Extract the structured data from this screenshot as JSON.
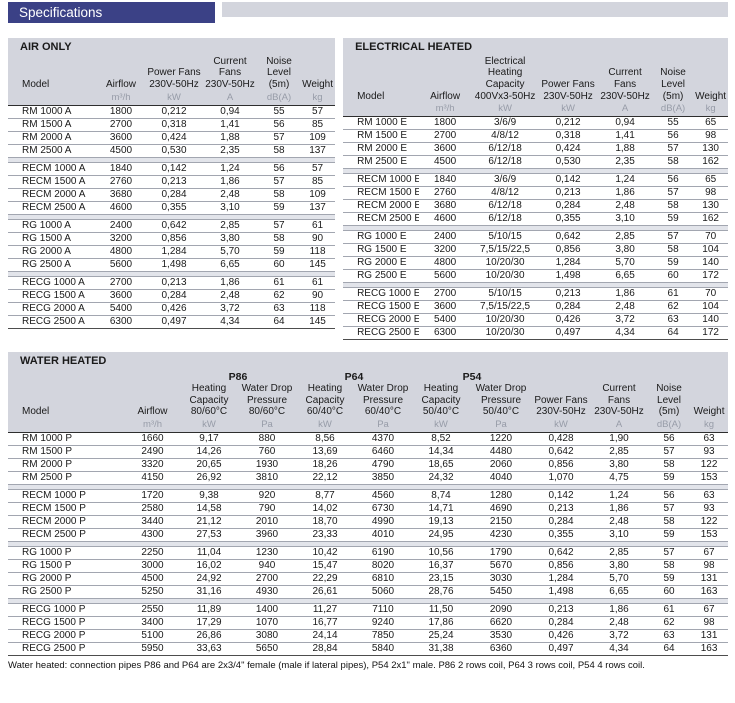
{
  "banner": {
    "title": "Specifications"
  },
  "colors": {
    "banner_bg": "#3b4186",
    "table_header_bg": "#d3d5dd",
    "group_band_bg": "#e2e4ea",
    "row_line": "#a2a6b0",
    "unit_text": "#979ca8"
  },
  "footnote": "Water heated: connection pipes P86 and P64 are 2x3/4\" female (male if lateral pipes), P54 2x1\" male. P86 2 rows coil, P64 3 rows coil, P54 4 rows coil.",
  "tables": {
    "air_only": {
      "title": "AIR ONLY",
      "columns": [
        {
          "label": "Model",
          "unit": ""
        },
        {
          "label": "Airflow",
          "unit": "m³/h"
        },
        {
          "label": "Power Fans\n230V-50Hz",
          "unit": "kW"
        },
        {
          "label": "Current\nFans\n230V-50Hz",
          "unit": "A"
        },
        {
          "label": "Noise\nLevel\n(5m)",
          "unit": "dB(A)"
        },
        {
          "label": "Weight",
          "unit": "kg"
        }
      ],
      "groups": [
        [
          [
            "RM 1000 A",
            "1800",
            "0,212",
            "0,94",
            "55",
            "57"
          ],
          [
            "RM 1500 A",
            "2700",
            "0,318",
            "1,41",
            "56",
            "85"
          ],
          [
            "RM 2000 A",
            "3600",
            "0,424",
            "1,88",
            "57",
            "109"
          ],
          [
            "RM 2500 A",
            "4500",
            "0,530",
            "2,35",
            "58",
            "137"
          ]
        ],
        [
          [
            "RECM 1000 A",
            "1840",
            "0,142",
            "1,24",
            "56",
            "57"
          ],
          [
            "RECM 1500 A",
            "2760",
            "0,213",
            "1,86",
            "57",
            "85"
          ],
          [
            "RECM 2000 A",
            "3680",
            "0,284",
            "2,48",
            "58",
            "109"
          ],
          [
            "RECM 2500 A",
            "4600",
            "0,355",
            "3,10",
            "59",
            "137"
          ]
        ],
        [
          [
            "RG 1000 A",
            "2400",
            "0,642",
            "2,85",
            "57",
            "61"
          ],
          [
            "RG 1500 A",
            "3200",
            "0,856",
            "3,80",
            "58",
            "90"
          ],
          [
            "RG 2000 A",
            "4800",
            "1,284",
            "5,70",
            "59",
            "118"
          ],
          [
            "RG 2500 A",
            "5600",
            "1,498",
            "6,65",
            "60",
            "145"
          ]
        ],
        [
          [
            "RECG 1000 A",
            "2700",
            "0,213",
            "1,86",
            "61",
            "61"
          ],
          [
            "RECG 1500 A",
            "3600",
            "0,284",
            "2,48",
            "62",
            "90"
          ],
          [
            "RECG 2000 A",
            "5400",
            "0,426",
            "3,72",
            "63",
            "118"
          ],
          [
            "RECG 2500 A",
            "6300",
            "0,497",
            "4,34",
            "64",
            "145"
          ]
        ]
      ]
    },
    "electrical_heated": {
      "title": "ELECTRICAL HEATED",
      "columns": [
        {
          "label": "Model",
          "unit": ""
        },
        {
          "label": "Airflow",
          "unit": "m³/h"
        },
        {
          "label": "Electrical Heating\nCapacity\n400Vx3-50Hz",
          "unit": "kW"
        },
        {
          "label": "Power Fans\n230V-50Hz",
          "unit": "kW"
        },
        {
          "label": "Current\nFans\n230V-50Hz",
          "unit": "A"
        },
        {
          "label": "Noise\nLevel\n(5m)",
          "unit": "dB(A)"
        },
        {
          "label": "Weight",
          "unit": "kg"
        }
      ],
      "groups": [
        [
          [
            "RM 1000 E",
            "1800",
            "3/6/9",
            "0,212",
            "0,94",
            "55",
            "65"
          ],
          [
            "RM 1500 E",
            "2700",
            "4/8/12",
            "0,318",
            "1,41",
            "56",
            "98"
          ],
          [
            "RM 2000 E",
            "3600",
            "6/12/18",
            "0,424",
            "1,88",
            "57",
            "130"
          ],
          [
            "RM 2500 E",
            "4500",
            "6/12/18",
            "0,530",
            "2,35",
            "58",
            "162"
          ]
        ],
        [
          [
            "RECM 1000 E",
            "1840",
            "3/6/9",
            "0,142",
            "1,24",
            "56",
            "65"
          ],
          [
            "RECM 1500 E",
            "2760",
            "4/8/12",
            "0,213",
            "1,86",
            "57",
            "98"
          ],
          [
            "RECM 2000 E",
            "3680",
            "6/12/18",
            "0,284",
            "2,48",
            "58",
            "130"
          ],
          [
            "RECM 2500 E",
            "4600",
            "6/12/18",
            "0,355",
            "3,10",
            "59",
            "162"
          ]
        ],
        [
          [
            "RG 1000 E",
            "2400",
            "5/10/15",
            "0,642",
            "2,85",
            "57",
            "70"
          ],
          [
            "RG 1500 E",
            "3200",
            "7,5/15/22,5",
            "0,856",
            "3,80",
            "58",
            "104"
          ],
          [
            "RG 2000 E",
            "4800",
            "10/20/30",
            "1,284",
            "5,70",
            "59",
            "140"
          ],
          [
            "RG 2500 E",
            "5600",
            "10/20/30",
            "1,498",
            "6,65",
            "60",
            "172"
          ]
        ],
        [
          [
            "RECG 1000 E",
            "2700",
            "5/10/15",
            "0,213",
            "1,86",
            "61",
            "70"
          ],
          [
            "RECG 1500 E",
            "3600",
            "7,5/15/22,5",
            "0,284",
            "2,48",
            "62",
            "104"
          ],
          [
            "RECG 2000 E",
            "5400",
            "10/20/30",
            "0,426",
            "3,72",
            "63",
            "140"
          ],
          [
            "RECG 2500 E",
            "6300",
            "10/20/30",
            "0,497",
            "4,34",
            "64",
            "172"
          ]
        ]
      ]
    },
    "water_heated": {
      "title": "WATER HEATED",
      "columns": [
        {
          "label": "Model",
          "unit": ""
        },
        {
          "label": "Airflow",
          "unit": "m³/h"
        },
        {
          "group": "P86",
          "label": "Heating\nCapacity\n80/60°C",
          "unit": "kW"
        },
        {
          "group": "P86",
          "label": "Water Drop\nPressure\n80/60°C",
          "unit": "Pa"
        },
        {
          "group": "P64",
          "label": "Heating\nCapacity\n60/40°C",
          "unit": "kW"
        },
        {
          "group": "P64",
          "label": "Water Drop\nPressure\n60/40°C",
          "unit": "Pa"
        },
        {
          "group": "P54",
          "label": "Heating\nCapacity\n50/40°C",
          "unit": "kW"
        },
        {
          "group": "P54",
          "label": "Water Drop\nPressure\n50/40°C",
          "unit": "Pa"
        },
        {
          "label": "Power Fans\n230V-50Hz",
          "unit": "kW"
        },
        {
          "label": "Current\nFans\n230V-50Hz",
          "unit": "A"
        },
        {
          "label": "Noise\nLevel\n(5m)",
          "unit": "dB(A)"
        },
        {
          "label": "Weight",
          "unit": "kg"
        }
      ],
      "groups": [
        [
          [
            "RM 1000 P",
            "1660",
            "9,17",
            "880",
            "8,56",
            "4370",
            "8,52",
            "1220",
            "0,428",
            "1,90",
            "56",
            "63"
          ],
          [
            "RM 1500 P",
            "2490",
            "14,26",
            "760",
            "13,69",
            "6460",
            "14,34",
            "4480",
            "0,642",
            "2,85",
            "57",
            "93"
          ],
          [
            "RM 2000 P",
            "3320",
            "20,65",
            "1930",
            "18,26",
            "4790",
            "18,65",
            "2060",
            "0,856",
            "3,80",
            "58",
            "122"
          ],
          [
            "RM 2500 P",
            "4150",
            "26,92",
            "3810",
            "22,12",
            "3850",
            "24,32",
            "4040",
            "1,070",
            "4,75",
            "59",
            "153"
          ]
        ],
        [
          [
            "RECM 1000 P",
            "1720",
            "9,38",
            "920",
            "8,77",
            "4560",
            "8,74",
            "1280",
            "0,142",
            "1,24",
            "56",
            "63"
          ],
          [
            "RECM 1500 P",
            "2580",
            "14,58",
            "790",
            "14,02",
            "6730",
            "14,71",
            "4690",
            "0,213",
            "1,86",
            "57",
            "93"
          ],
          [
            "RECM 2000 P",
            "3440",
            "21,12",
            "2010",
            "18,70",
            "4990",
            "19,13",
            "2150",
            "0,284",
            "2,48",
            "58",
            "122"
          ],
          [
            "RECM 2500 P",
            "4300",
            "27,53",
            "3960",
            "23,33",
            "4010",
            "24,95",
            "4230",
            "0,355",
            "3,10",
            "59",
            "153"
          ]
        ],
        [
          [
            "RG 1000 P",
            "2250",
            "11,04",
            "1230",
            "10,42",
            "6190",
            "10,56",
            "1790",
            "0,642",
            "2,85",
            "57",
            "67"
          ],
          [
            "RG 1500 P",
            "3000",
            "16,02",
            "940",
            "15,47",
            "8020",
            "16,37",
            "5670",
            "0,856",
            "3,80",
            "58",
            "98"
          ],
          [
            "RG 2000 P",
            "4500",
            "24,92",
            "2700",
            "22,29",
            "6810",
            "23,15",
            "3030",
            "1,284",
            "5,70",
            "59",
            "131"
          ],
          [
            "RG 2500 P",
            "5250",
            "31,16",
            "4930",
            "26,61",
            "5060",
            "28,76",
            "5450",
            "1,498",
            "6,65",
            "60",
            "163"
          ]
        ],
        [
          [
            "RECG 1000 P",
            "2550",
            "11,89",
            "1400",
            "11,27",
            "7110",
            "11,50",
            "2090",
            "0,213",
            "1,86",
            "61",
            "67"
          ],
          [
            "RECG 1500 P",
            "3400",
            "17,29",
            "1070",
            "16,77",
            "9240",
            "17,86",
            "6620",
            "0,284",
            "2,48",
            "62",
            "98"
          ],
          [
            "RECG 2000 P",
            "5100",
            "26,86",
            "3080",
            "24,14",
            "7850",
            "25,24",
            "3530",
            "0,426",
            "3,72",
            "63",
            "131"
          ],
          [
            "RECG 2500 P",
            "5950",
            "33,63",
            "5650",
            "28,84",
            "5840",
            "31,38",
            "6360",
            "0,497",
            "4,34",
            "64",
            "163"
          ]
        ]
      ]
    }
  }
}
